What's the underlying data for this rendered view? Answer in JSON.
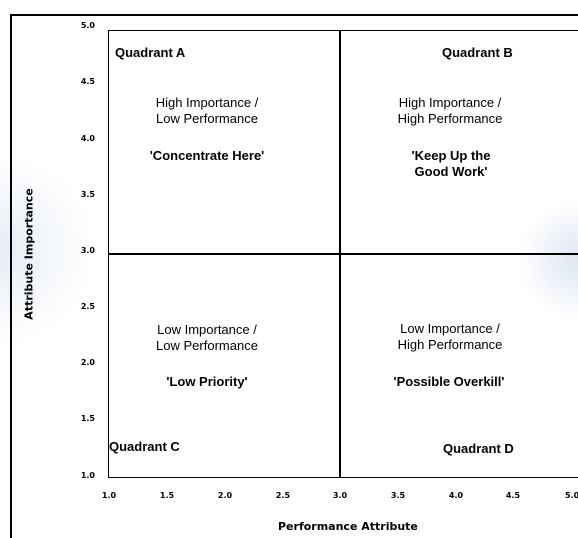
{
  "chart_data": {
    "type": "quadrant",
    "xlabel": "Performance Attribute",
    "ylabel": "Attribute Importance",
    "xlim": [
      1.0,
      5.0
    ],
    "ylim": [
      1.0,
      5.0
    ],
    "x_ticks": [
      "1.0",
      "1.5",
      "2.0",
      "2.5",
      "3.0",
      "3.5",
      "4.0",
      "4.5",
      "5.0"
    ],
    "y_ticks": [
      "5.0",
      "4.5",
      "4.0",
      "3.5",
      "3.0",
      "2.5",
      "2.0",
      "1.5",
      "1.0"
    ],
    "x_divider": 3.0,
    "y_divider": 3.0,
    "quadrants": {
      "a": {
        "label": "Quadrant A",
        "description": [
          "High Importance /",
          "Low Performance"
        ],
        "slogan": [
          "'Concentrate Here'"
        ]
      },
      "b": {
        "label": "Quadrant B",
        "description": [
          "High Importance /",
          "High Performance"
        ],
        "slogan": [
          "'Keep Up the",
          "Good Work'"
        ]
      },
      "c": {
        "label": "Quadrant C",
        "description": [
          "Low Importance /",
          "Low Performance"
        ],
        "slogan": [
          "'Low Priority'"
        ]
      },
      "d": {
        "label": "Quadrant D",
        "description": [
          "Low Importance /",
          "High Performance"
        ],
        "slogan": [
          "'Possible Overkill'"
        ]
      }
    }
  }
}
